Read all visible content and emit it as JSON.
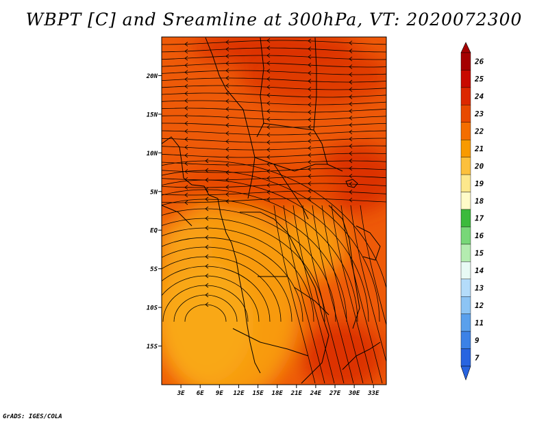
{
  "title": "WBPT [C] and Sreamline at 300hPa, VT: 2020072300",
  "footer": "GrADS: IGES/COLA",
  "map": {
    "lat_labels": [
      "20N",
      "15N",
      "10N",
      "5N",
      "EQ",
      "5S",
      "10S",
      "15S"
    ],
    "lon_labels": [
      "3E",
      "6E",
      "9E",
      "12E",
      "15E",
      "18E",
      "21E",
      "24E",
      "27E",
      "30E",
      "33E"
    ],
    "lat_range": [
      -20,
      25
    ],
    "lon_range": [
      0,
      35
    ]
  },
  "colorbar": {
    "labels": [
      "26",
      "25",
      "24",
      "23",
      "22",
      "21",
      "20",
      "19",
      "18",
      "17",
      "16",
      "15",
      "14",
      "13",
      "12",
      "11",
      "9",
      "7"
    ],
    "colors": [
      "#a50000",
      "#c80a00",
      "#dc2800",
      "#e84a00",
      "#f46e00",
      "#f89a00",
      "#fcc03c",
      "#fde88c",
      "#fffbc8",
      "#3cba3c",
      "#78d778",
      "#b4ecb0",
      "#e8faf4",
      "#b4dcfa",
      "#8cc4f4",
      "#5aa0ec",
      "#3c82e6",
      "#2864e0"
    ]
  }
}
